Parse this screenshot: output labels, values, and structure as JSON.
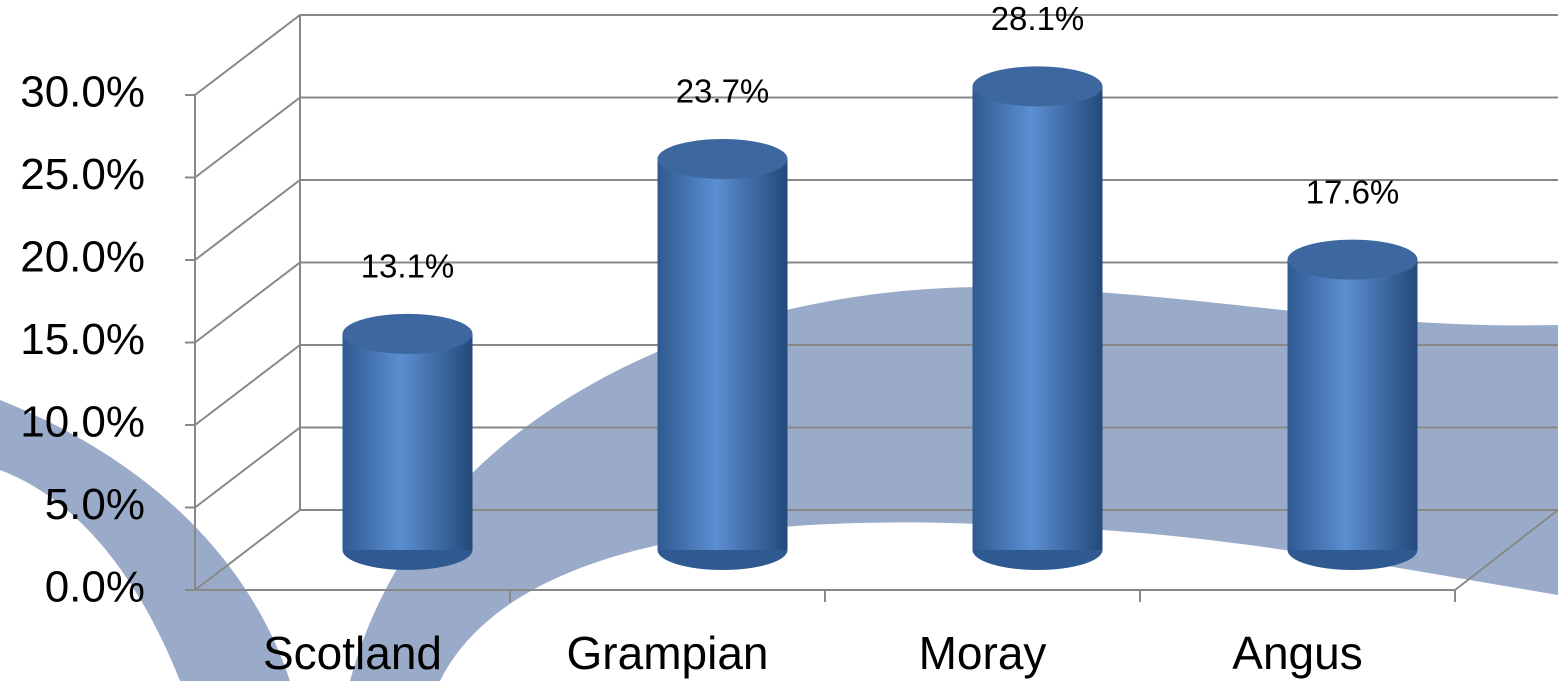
{
  "chart_data": {
    "type": "bar",
    "categories": [
      "Scotland",
      "Grampian",
      "Moray",
      "Angus"
    ],
    "values": [
      13.1,
      23.7,
      28.1,
      17.6
    ],
    "value_labels": [
      "13.1%",
      "23.7%",
      "28.1%",
      "17.6%"
    ],
    "color": "#4f81bd",
    "ylim": [
      0,
      30
    ],
    "yticks": [
      {
        "value": 0,
        "label": "0.0%"
      },
      {
        "value": 5,
        "label": "5.0%"
      },
      {
        "value": 10,
        "label": "10.0%"
      },
      {
        "value": 15,
        "label": "15.0%"
      },
      {
        "value": 20,
        "label": "20.0%"
      },
      {
        "value": 25,
        "label": "25.0%"
      },
      {
        "value": 30,
        "label": "30.0%"
      }
    ],
    "grid": true
  }
}
